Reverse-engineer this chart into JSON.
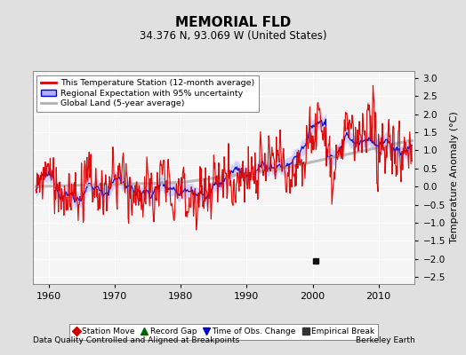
{
  "title": "MEMORIAL FLD",
  "subtitle": "34.376 N, 93.069 W (United States)",
  "ylabel": "Temperature Anomaly (°C)",
  "xlabel_bottom": "Data Quality Controlled and Aligned at Breakpoints",
  "xlabel_right": "Berkeley Earth",
  "xmin": 1957.5,
  "xmax": 2015.5,
  "ymin": -2.7,
  "ymax": 3.2,
  "yticks": [
    -2.5,
    -2,
    -1.5,
    -1,
    -0.5,
    0,
    0.5,
    1,
    1.5,
    2,
    2.5,
    3
  ],
  "xticks": [
    1960,
    1970,
    1980,
    1990,
    2000,
    2010
  ],
  "bg_color": "#e0e0e0",
  "plot_bg_color": "#f5f5f5",
  "grid_color": "#ffffff",
  "station_line_color": "#dd0000",
  "regional_line_color": "#0000cc",
  "regional_fill_color": "#b0b0ff",
  "global_line_color": "#b0b0b0",
  "empirical_break_year": 2000.5,
  "empirical_break_value": -2.05,
  "legend_entries": [
    "This Temperature Station (12-month average)",
    "Regional Expectation with 95% uncertainty",
    "Global Land (5-year average)"
  ],
  "marker_legend": [
    {
      "label": "Station Move",
      "color": "#cc0000",
      "marker": "D"
    },
    {
      "label": "Record Gap",
      "color": "#006600",
      "marker": "^"
    },
    {
      "label": "Time of Obs. Change",
      "color": "#0000cc",
      "marker": "v"
    },
    {
      "label": "Empirical Break",
      "color": "#333333",
      "marker": "s"
    }
  ]
}
